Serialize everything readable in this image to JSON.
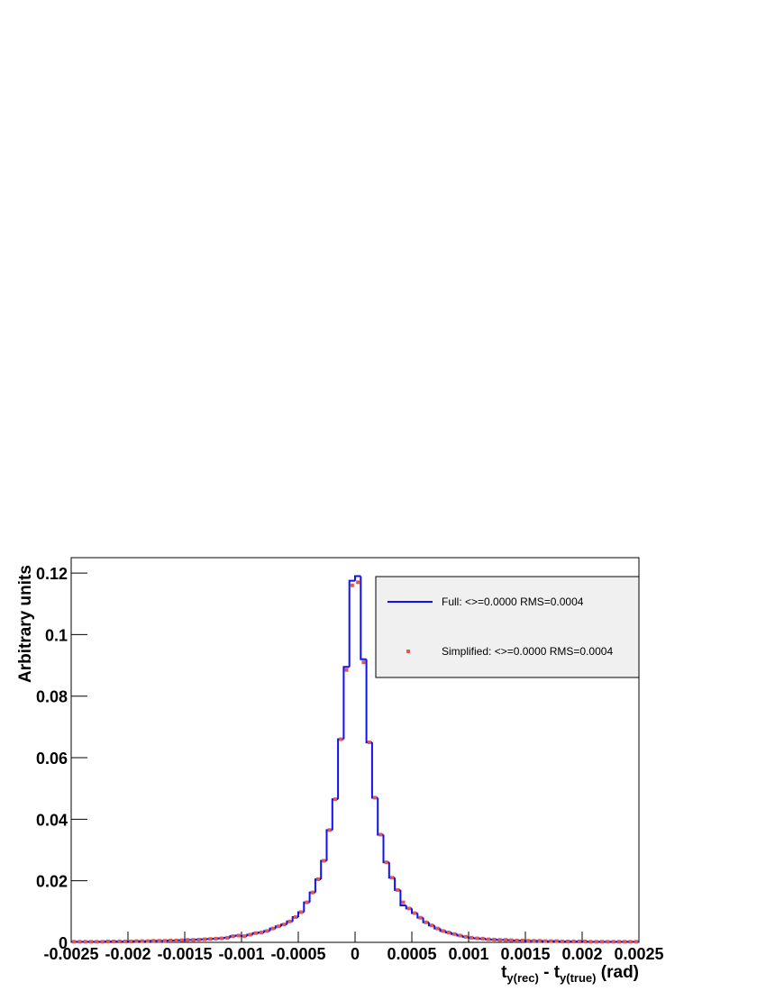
{
  "chart_data": {
    "type": "histogram",
    "bins": [
      -0.0025,
      -0.00245,
      -0.0024,
      -0.00235,
      -0.0023,
      -0.00225,
      -0.0022,
      -0.00215,
      -0.0021,
      -0.00205,
      -0.002,
      -0.00195,
      -0.0019,
      -0.00185,
      -0.0018,
      -0.00175,
      -0.0017,
      -0.00165,
      -0.0016,
      -0.00155,
      -0.0015,
      -0.00145,
      -0.0014,
      -0.00135,
      -0.0013,
      -0.00125,
      -0.0012,
      -0.00115,
      -0.0011,
      -0.00105,
      -0.001,
      -0.00095,
      -0.0009,
      -0.00085,
      -0.0008,
      -0.00075,
      -0.0007,
      -0.00065,
      -0.0006,
      -0.00055,
      -0.0005,
      -0.00045,
      -0.0004,
      -0.00035,
      -0.0003,
      -0.00025,
      -0.0002,
      -0.00015,
      -0.0001,
      -5e-05,
      0,
      5e-05,
      0.0001,
      0.00015,
      0.0002,
      0.00025,
      0.0003,
      0.00035,
      0.0004,
      0.00045,
      0.0005,
      0.00055,
      0.0006,
      0.00065,
      0.0007,
      0.00075,
      0.0008,
      0.00085,
      0.0009,
      0.00095,
      0.001,
      0.00105,
      0.0011,
      0.00115,
      0.0012,
      0.00125,
      0.0013,
      0.00135,
      0.0014,
      0.00145,
      0.0015,
      0.00155,
      0.0016,
      0.00165,
      0.0017,
      0.00175,
      0.0018,
      0.00185,
      0.0019,
      0.00195,
      0.002,
      0.00205,
      0.0021,
      0.00215,
      0.0022,
      0.00225,
      0.0023,
      0.00235,
      0.0024,
      0.00245,
      0.0025
    ],
    "series": [
      {
        "name": "Full: <>=0.0000 RMS=0.0004",
        "color": "#1010f0",
        "style": "step",
        "values": [
          0.0002,
          0.0002,
          0.0002,
          0.0002,
          0.0002,
          0.0002,
          0.0003,
          0.0003,
          0.0003,
          0.0003,
          0.0003,
          0.0004,
          0.0004,
          0.0004,
          0.0005,
          0.0005,
          0.0005,
          0.0006,
          0.0006,
          0.0007,
          0.0008,
          0.0008,
          0.0009,
          0.001,
          0.0011,
          0.0012,
          0.0013,
          0.0015,
          0.002,
          0.0022,
          0.002,
          0.0025,
          0.003,
          0.0032,
          0.0037,
          0.0045,
          0.0052,
          0.0058,
          0.0068,
          0.0082,
          0.0098,
          0.013,
          0.0162,
          0.0205,
          0.0265,
          0.0365,
          0.0465,
          0.066,
          0.0895,
          0.1175,
          0.119,
          0.092,
          0.065,
          0.047,
          0.035,
          0.026,
          0.021,
          0.017,
          0.012,
          0.011,
          0.0095,
          0.008,
          0.0065,
          0.0055,
          0.0045,
          0.0037,
          0.0032,
          0.0027,
          0.0022,
          0.0018,
          0.0015,
          0.0013,
          0.0012,
          0.001,
          0.0009,
          0.0008,
          0.0008,
          0.0007,
          0.0006,
          0.0006,
          0.0005,
          0.0005,
          0.0005,
          0.0004,
          0.0004,
          0.0004,
          0.0003,
          0.0003,
          0.0003,
          0.0003,
          0.0003,
          0.0002,
          0.0002,
          0.0002,
          0.0002,
          0.0002,
          0.0002,
          0.0002,
          0.0002,
          0.0002
        ]
      },
      {
        "name": "Simplified: <>=0.0000 RMS=0.0004",
        "color": "#e05a50",
        "style": "markers",
        "values": [
          0.0002,
          0.0002,
          0.0002,
          0.0002,
          0.0002,
          0.0002,
          0.0003,
          0.0003,
          0.0003,
          0.0003,
          0.0003,
          0.0004,
          0.0004,
          0.0004,
          0.0005,
          0.0005,
          0.0005,
          0.0006,
          0.0006,
          0.0007,
          0.0008,
          0.0008,
          0.0009,
          0.001,
          0.0011,
          0.0012,
          0.0013,
          0.0015,
          0.002,
          0.0022,
          0.002,
          0.0025,
          0.003,
          0.0032,
          0.0037,
          0.0045,
          0.0052,
          0.0058,
          0.0068,
          0.0082,
          0.0098,
          0.013,
          0.0162,
          0.0205,
          0.0265,
          0.0365,
          0.0465,
          0.066,
          0.0885,
          0.116,
          0.117,
          0.091,
          0.065,
          0.047,
          0.035,
          0.026,
          0.021,
          0.017,
          0.013,
          0.011,
          0.0095,
          0.008,
          0.0065,
          0.0055,
          0.0045,
          0.0037,
          0.0032,
          0.0027,
          0.0022,
          0.0018,
          0.0015,
          0.0013,
          0.0012,
          0.001,
          0.0009,
          0.0008,
          0.0008,
          0.0007,
          0.0006,
          0.0006,
          0.0005,
          0.0005,
          0.0005,
          0.0004,
          0.0004,
          0.0004,
          0.0003,
          0.0003,
          0.0003,
          0.0003,
          0.0003,
          0.0002,
          0.0002,
          0.0002,
          0.0002,
          0.0002,
          0.0002,
          0.0002,
          0.0002,
          0.0002
        ]
      }
    ],
    "x_label": [
      "t",
      "y(rec)",
      " - t",
      "y(true)",
      " (rad)"
    ],
    "y_label": "Arbitrary units",
    "xlim": [
      -0.0025,
      0.0025
    ],
    "xticks": [
      -0.0025,
      -0.002,
      -0.0015,
      -0.001,
      -0.0005,
      0,
      0.0005,
      0.001,
      0.0015,
      0.002,
      0.0025
    ],
    "ylim": [
      0,
      0.125
    ],
    "yticks": [
      0,
      0.02,
      0.04,
      0.06,
      0.08,
      0.1,
      0.12
    ]
  }
}
